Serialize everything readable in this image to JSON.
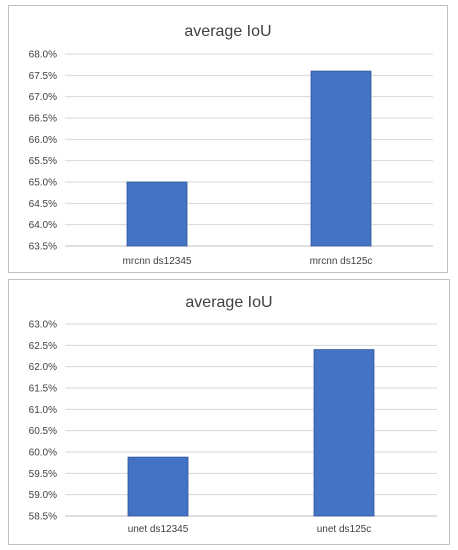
{
  "chart_data": [
    {
      "type": "bar",
      "title": "average IoU",
      "categories": [
        "mrcnn ds12345",
        "mrcnn ds125c"
      ],
      "values": [
        65.0,
        67.6
      ],
      "ylim": [
        63.5,
        68.0
      ],
      "yticks": [
        "63.5%",
        "64.0%",
        "64.5%",
        "65.0%",
        "65.5%",
        "66.0%",
        "66.5%",
        "67.0%",
        "67.5%",
        "68.0%"
      ],
      "tick_step": 0.5,
      "grid": true,
      "bar_color": "#4472c4"
    },
    {
      "type": "bar",
      "title": "average IoU",
      "categories": [
        "unet ds12345",
        "unet ds125c"
      ],
      "values": [
        59.88,
        62.4
      ],
      "ylim": [
        58.5,
        63.0
      ],
      "yticks": [
        "58.5%",
        "59.0%",
        "59.5%",
        "60.0%",
        "60.5%",
        "61.0%",
        "61.5%",
        "62.0%",
        "62.5%",
        "63.0%"
      ],
      "tick_step": 0.5,
      "grid": true,
      "bar_color": "#4472c4"
    }
  ]
}
